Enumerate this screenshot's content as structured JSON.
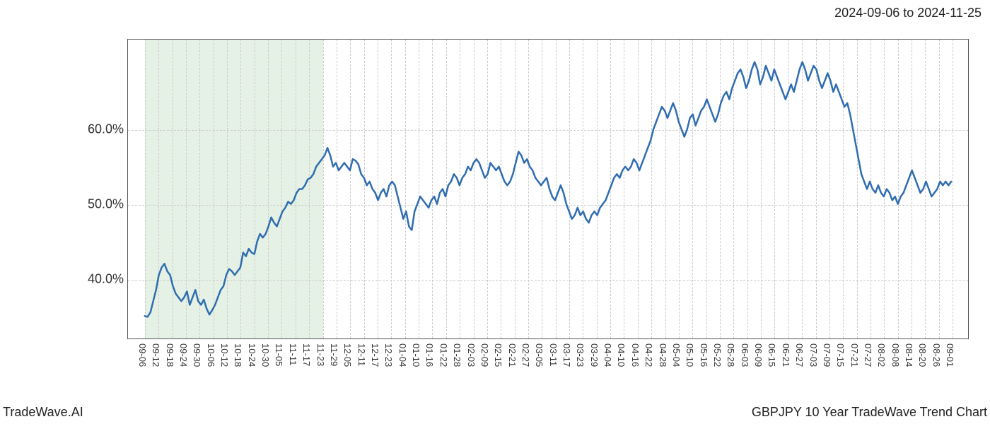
{
  "date_range_text": "2024-09-06 to 2024-11-25",
  "brand_text": "TradeWave.AI",
  "title_text": "GBPJPY 10 Year TradeWave Trend Chart",
  "chart": {
    "type": "line",
    "background_color": "#ffffff",
    "grid_color": "#cccccc",
    "border_color": "#555555",
    "line_color": "#2f6db0",
    "line_width": 2.5,
    "highlight_color": "rgba(180,215,180,0.35)",
    "y_axis": {
      "min": 32,
      "max": 72,
      "ticks": [
        40.0,
        50.0,
        60.0
      ],
      "tick_labels": [
        "40.0%",
        "50.0%",
        "60.0%"
      ],
      "label_fontsize": 18
    },
    "x_axis": {
      "tick_labels": [
        "09-06",
        "09-12",
        "09-18",
        "09-24",
        "09-30",
        "10-06",
        "10-12",
        "10-18",
        "10-24",
        "10-30",
        "11-05",
        "11-11",
        "11-17",
        "11-23",
        "11-29",
        "12-05",
        "12-11",
        "12-17",
        "12-23",
        "01-04",
        "01-10",
        "01-16",
        "01-22",
        "01-28",
        "02-03",
        "02-09",
        "02-15",
        "02-21",
        "02-27",
        "03-05",
        "03-11",
        "03-17",
        "03-23",
        "03-29",
        "04-04",
        "04-10",
        "04-16",
        "04-22",
        "04-28",
        "05-04",
        "05-10",
        "05-16",
        "05-22",
        "05-28",
        "06-03",
        "06-09",
        "06-15",
        "06-21",
        "06-27",
        "07-03",
        "07-09",
        "07-15",
        "07-21",
        "07-27",
        "08-02",
        "08-08",
        "08-14",
        "08-20",
        "08-26",
        "09-01"
      ],
      "label_fontsize": 13,
      "rotation": 90,
      "highlight_start_index": 0,
      "highlight_end_index": 13
    },
    "series": [
      35.0,
      34.9,
      35.5,
      37.0,
      38.5,
      40.5,
      41.5,
      42.0,
      41.0,
      40.5,
      39.0,
      38.0,
      37.5,
      37.0,
      37.5,
      38.3,
      36.5,
      37.5,
      38.5,
      37.0,
      36.5,
      37.2,
      36.0,
      35.2,
      35.8,
      36.5,
      37.5,
      38.5,
      39.0,
      40.5,
      41.3,
      41.0,
      40.5,
      41.0,
      41.5,
      43.5,
      43.0,
      44.0,
      43.5,
      43.3,
      45.0,
      46.0,
      45.5,
      46.0,
      47.0,
      48.2,
      47.5,
      47.0,
      48.0,
      49.0,
      49.5,
      50.3,
      50.0,
      50.5,
      51.5,
      52.0,
      52.0,
      52.5,
      53.3,
      53.5,
      54.0,
      55.0,
      55.5,
      56.0,
      56.5,
      57.5,
      56.5,
      55.0,
      55.5,
      54.5,
      55.0,
      55.5,
      55.0,
      54.5,
      56.0,
      55.8,
      55.3,
      54.0,
      53.5,
      52.5,
      53.0,
      52.0,
      51.5,
      50.5,
      51.5,
      52.0,
      51.0,
      52.5,
      53.0,
      52.5,
      51.0,
      49.5,
      48.0,
      49.0,
      47.0,
      46.5,
      49.0,
      50.0,
      51.0,
      50.5,
      50.0,
      49.5,
      50.5,
      51.0,
      50.0,
      51.5,
      52.0,
      51.0,
      52.5,
      53.0,
      54.0,
      53.5,
      52.5,
      53.5,
      54.0,
      55.0,
      54.5,
      55.5,
      56.0,
      55.5,
      54.5,
      53.5,
      54.0,
      55.5,
      55.0,
      54.5,
      55.0,
      54.0,
      53.0,
      52.5,
      53.0,
      54.0,
      55.5,
      57.0,
      56.5,
      55.5,
      56.0,
      55.0,
      54.5,
      53.5,
      53.0,
      52.5,
      53.0,
      53.5,
      52.0,
      51.0,
      50.5,
      51.5,
      52.5,
      51.5,
      50.0,
      49.0,
      48.0,
      48.5,
      49.5,
      48.5,
      49.0,
      48.0,
      47.5,
      48.5,
      49.0,
      48.5,
      49.5,
      50.0,
      50.5,
      51.5,
      52.5,
      53.5,
      54.0,
      53.5,
      54.5,
      55.0,
      54.5,
      55.0,
      56.0,
      55.5,
      54.5,
      55.5,
      56.5,
      57.5,
      58.5,
      60.0,
      61.0,
      62.0,
      63.0,
      62.5,
      61.5,
      62.5,
      63.5,
      62.5,
      61.0,
      60.0,
      59.0,
      60.0,
      61.5,
      62.0,
      60.5,
      61.5,
      62.5,
      63.0,
      64.0,
      63.0,
      62.0,
      61.0,
      62.0,
      63.5,
      64.5,
      65.0,
      64.0,
      65.5,
      66.5,
      67.5,
      68.0,
      67.0,
      65.5,
      66.5,
      68.0,
      69.0,
      68.0,
      66.0,
      67.0,
      68.5,
      67.5,
      66.5,
      68.0,
      67.0,
      66.0,
      65.0,
      64.0,
      65.0,
      66.0,
      65.0,
      66.5,
      68.0,
      69.0,
      68.0,
      66.5,
      67.5,
      68.5,
      68.0,
      66.5,
      65.5,
      66.5,
      67.5,
      66.5,
      65.0,
      66.0,
      65.0,
      64.0,
      63.0,
      63.5,
      62.0,
      60.0,
      58.0,
      56.0,
      54.0,
      53.0,
      52.0,
      53.0,
      52.0,
      51.5,
      52.5,
      51.5,
      51.0,
      52.0,
      51.5,
      50.5,
      51.0,
      50.0,
      51.0,
      51.5,
      52.5,
      53.5,
      54.5,
      53.5,
      52.5,
      51.5,
      52.0,
      53.0,
      52.0,
      51.0,
      51.5,
      52.0,
      53.0,
      52.5,
      53.0,
      52.5,
      53.0
    ]
  }
}
